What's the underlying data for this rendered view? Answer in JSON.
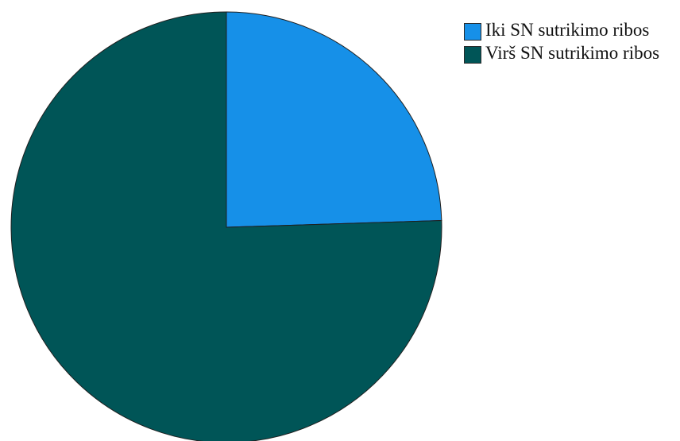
{
  "chart_data": {
    "type": "pie",
    "title": "",
    "slices": [
      {
        "label": "Iki SN sutrikimo ribos",
        "value": 24.5,
        "color": "#1690e8"
      },
      {
        "label": "Virš SN sutrikimo ribos",
        "value": 75.5,
        "color": "#005557"
      }
    ],
    "start_angle": "12 o'clock",
    "direction": "clockwise",
    "slice_border_color": "#1f1f1f",
    "legend": {
      "placement": "top-right",
      "items": [
        {
          "label": "Iki SN sutrikimo ribos",
          "color": "#1690e8"
        },
        {
          "label": "Virš SN sutrikimo ribos",
          "color": "#005557"
        }
      ]
    }
  }
}
